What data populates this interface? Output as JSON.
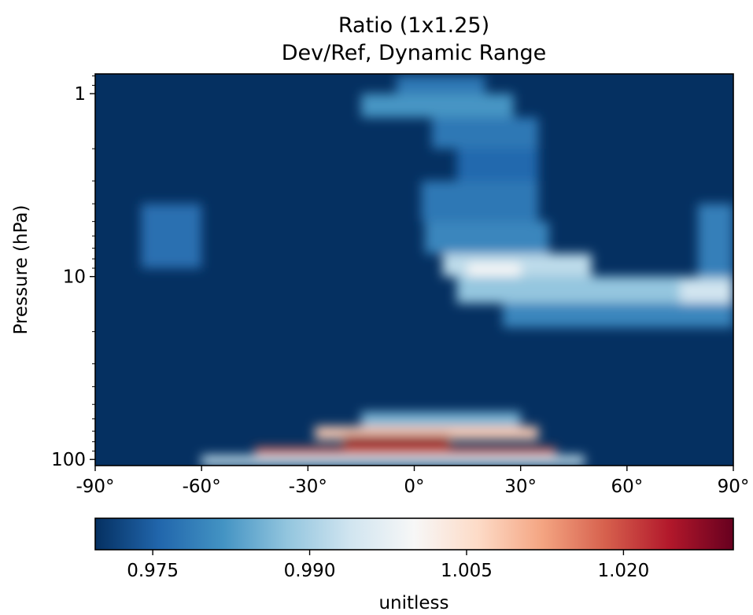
{
  "chart_data": {
    "type": "heatmap",
    "title_line1": "Ratio (1x1.25)",
    "title_line2": "Dev/Ref, Dynamic Range",
    "ylabel": "Pressure (hPa)",
    "xlabel": "",
    "x_axis": {
      "range": [
        -90,
        90
      ],
      "ticks": [
        -90,
        -60,
        -30,
        0,
        30,
        60,
        90
      ],
      "tick_labels": [
        "-90°",
        "-60°",
        "-30°",
        "0°",
        "30°",
        "60°",
        "90°"
      ]
    },
    "y_axis": {
      "scale": "log",
      "inverted": true,
      "range": [
        108,
        0.78
      ],
      "ticks": [
        1,
        10,
        100
      ],
      "tick_labels": [
        "1",
        "10",
        "100"
      ]
    },
    "colorbar": {
      "label": "unitless",
      "colormap": "RdBu_r",
      "range": [
        0.9695,
        1.0305
      ],
      "ticks": [
        0.975,
        0.99,
        1.005,
        1.02
      ],
      "tick_labels": [
        "0.975",
        "0.990",
        "1.005",
        "1.020"
      ],
      "colors": [
        "#053061",
        "#2166ac",
        "#4393c3",
        "#92c5de",
        "#d1e5f0",
        "#f7f7f7",
        "#fddbc7",
        "#f4a582",
        "#d6604d",
        "#b2182b",
        "#67001f"
      ]
    },
    "background_value": 0.9695,
    "features": [
      {
        "region": "top equatorial band",
        "lat": [
          -5,
          20
        ],
        "p": [
          0.8,
          1.0
        ],
        "value": 0.978
      },
      {
        "region": "top band",
        "lat": [
          -15,
          28
        ],
        "p": [
          1.0,
          1.35
        ],
        "value": 0.982
      },
      {
        "region": "upper ribbon",
        "lat": [
          5,
          35
        ],
        "p": [
          1.35,
          2.0
        ],
        "value": 0.978
      },
      {
        "region": "upper ribbon",
        "lat": [
          12,
          35
        ],
        "p": [
          2.0,
          3.0
        ],
        "value": 0.976
      },
      {
        "region": "mid ribbon",
        "lat": [
          2,
          35
        ],
        "p": [
          3.0,
          5.0
        ],
        "value": 0.978
      },
      {
        "region": "mid ribbon",
        "lat": [
          3,
          38
        ],
        "p": [
          5.0,
          7.5
        ],
        "value": 0.98
      },
      {
        "region": "ribbon bend",
        "lat": [
          8,
          50
        ],
        "p": [
          7.5,
          10.0
        ],
        "value": 0.992
      },
      {
        "region": "ribbon bend peak",
        "lat": [
          15,
          30
        ],
        "p": [
          8.5,
          11.5
        ],
        "value": 1.0
      },
      {
        "region": "lower ribbon",
        "lat": [
          12,
          90
        ],
        "p": [
          10.0,
          14.0
        ],
        "value": 0.988
      },
      {
        "region": "north pole band",
        "lat": [
          75,
          90
        ],
        "p": [
          10.5,
          18.0
        ],
        "value": 0.994
      },
      {
        "region": "north pole upper",
        "lat": [
          80,
          90
        ],
        "p": [
          4.0,
          10.0
        ],
        "value": 0.979
      },
      {
        "region": "lower ribbon tail",
        "lat": [
          25,
          90
        ],
        "p": [
          14.0,
          19.0
        ],
        "value": 0.98
      },
      {
        "region": "south mid patch",
        "lat": [
          -77,
          -60
        ],
        "p": [
          4.0,
          9.0
        ],
        "value": 0.977
      },
      {
        "region": "tropical bottom",
        "lat": [
          -15,
          30
        ],
        "p": [
          55,
          66
        ],
        "value": 0.986
      },
      {
        "region": "tropical bottom",
        "lat": [
          -28,
          35
        ],
        "p": [
          66,
          78
        ],
        "value": 1.008
      },
      {
        "region": "tropical bottom core",
        "lat": [
          -20,
          10
        ],
        "p": [
          74,
          86
        ],
        "value": 1.028
      },
      {
        "region": "tropical bottom",
        "lat": [
          -45,
          40
        ],
        "p": [
          86,
          108
        ],
        "value": 1.018
      },
      {
        "region": "tropical bottom edge",
        "lat": [
          -60,
          48
        ],
        "p": [
          95,
          108
        ],
        "value": 0.992
      }
    ]
  }
}
